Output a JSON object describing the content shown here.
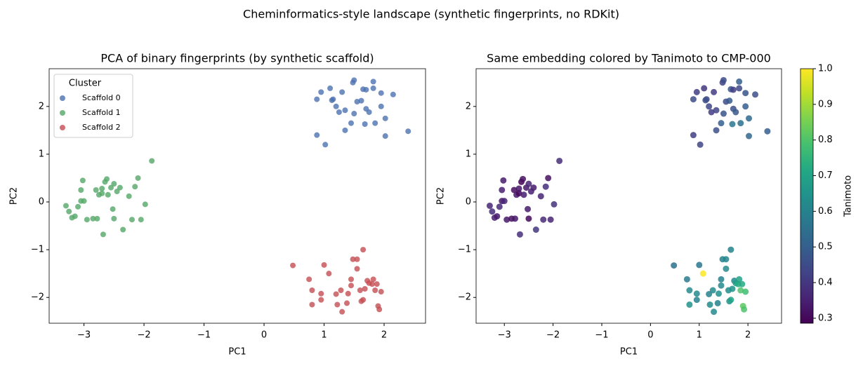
{
  "suptitle": "Cheminformatics-style landscape (synthetic fingerprints, no RDKit)",
  "chart_data": [
    {
      "type": "scatter",
      "title": "PCA of binary fingerprints (by synthetic scaffold)",
      "xlabel": "PC1",
      "ylabel": "PC2",
      "xlim": [
        -3.58,
        2.69
      ],
      "ylim": [
        -2.54,
        2.79
      ],
      "xticks": [
        {
          "value": -3,
          "label": "−3"
        },
        {
          "value": -2,
          "label": "−2"
        },
        {
          "value": -1,
          "label": "−1"
        },
        0,
        1,
        2
      ],
      "yticks": [
        {
          "value": -2,
          "label": "−2"
        },
        {
          "value": -1,
          "label": "−1"
        },
        0,
        1,
        2
      ],
      "alpha": 0.8,
      "legend": {
        "title": "Cluster",
        "loc": "upper left"
      },
      "series": [
        {
          "name": "Scaffold 0",
          "color": "#4c72b0",
          "x": [
            0.88,
            0.95,
            1.1,
            1.15,
            1.13,
            1.3,
            1.48,
            1.5,
            1.65,
            1.7,
            1.82,
            1.82,
            1.95,
            2.15,
            1.25,
            1.35,
            1.5,
            1.55,
            1.62,
            1.7,
            1.95,
            2.02,
            1.85,
            1.68,
            1.45,
            1.35,
            0.88,
            1.02,
            2.02,
            2.4,
            1.2,
            1.75
          ],
          "y": [
            2.15,
            2.3,
            2.38,
            2.15,
            2.13,
            2.3,
            2.5,
            2.55,
            2.36,
            2.35,
            2.52,
            2.38,
            2.28,
            2.25,
            1.88,
            1.92,
            1.85,
            2.1,
            2.12,
            1.95,
            2.0,
            1.75,
            1.65,
            1.63,
            1.65,
            1.5,
            1.4,
            1.2,
            1.38,
            1.48,
            2.0,
            1.88
          ]
        },
        {
          "name": "Scaffold 1",
          "color": "#55a868",
          "x": [
            -3.3,
            -3.25,
            -3.2,
            -3.15,
            -3.1,
            -3.05,
            -3.0,
            -3.05,
            -3.02,
            -2.95,
            -2.85,
            -2.8,
            -2.75,
            -2.7,
            -2.7,
            -2.65,
            -2.62,
            -2.6,
            -2.55,
            -2.5,
            -2.52,
            -2.5,
            -2.68,
            -2.45,
            -2.4,
            -2.35,
            -2.25,
            -2.15,
            -2.1,
            -2.2,
            -2.05,
            -1.98,
            -1.87,
            -2.78
          ],
          "y": [
            -0.08,
            -0.2,
            -0.33,
            -0.3,
            -0.1,
            0.02,
            0.02,
            0.25,
            0.45,
            -0.37,
            -0.35,
            0.25,
            0.15,
            0.28,
            0.18,
            0.42,
            0.48,
            0.15,
            0.3,
            0.38,
            -0.15,
            -0.35,
            -0.68,
            0.22,
            0.3,
            -0.58,
            0.12,
            0.32,
            0.5,
            -0.37,
            -0.37,
            -0.05,
            0.86,
            -0.35
          ]
        },
        {
          "name": "Scaffold 2",
          "color": "#c44e52",
          "x": [
            0.48,
            0.75,
            0.8,
            0.8,
            0.95,
            0.95,
            1.0,
            1.08,
            1.2,
            1.22,
            1.28,
            1.3,
            1.38,
            1.4,
            1.45,
            1.45,
            1.48,
            1.55,
            1.55,
            1.6,
            1.62,
            1.65,
            1.65,
            1.68,
            1.72,
            1.75,
            1.8,
            1.82,
            1.85,
            1.88,
            1.9,
            1.92,
            1.95
          ],
          "y": [
            -1.33,
            -1.62,
            -1.85,
            -2.15,
            -2.05,
            -1.92,
            -1.32,
            -1.5,
            -1.93,
            -2.15,
            -1.85,
            -2.3,
            -2.12,
            -1.92,
            -1.62,
            -1.75,
            -1.2,
            -1.2,
            -1.4,
            -1.85,
            -2.08,
            -1.0,
            -2.05,
            -1.82,
            -1.65,
            -1.7,
            -1.72,
            -1.62,
            -1.85,
            -1.72,
            -2.18,
            -2.25,
            -1.88
          ]
        }
      ]
    },
    {
      "type": "colorscatter",
      "title": "Same embedding colored by Tanimoto to CMP-000",
      "xlabel": "PC1",
      "ylabel": "PC2",
      "xlim": [
        -3.58,
        2.69
      ],
      "ylim": [
        -2.54,
        2.79
      ],
      "xticks": [
        {
          "value": -3,
          "label": "−3"
        },
        {
          "value": -2,
          "label": "−2"
        },
        {
          "value": -1,
          "label": "−1"
        },
        0,
        1,
        2
      ],
      "yticks": [
        {
          "value": -2,
          "label": "−2"
        },
        {
          "value": -1,
          "label": "−1"
        },
        0,
        1,
        2
      ],
      "alpha": 0.85,
      "x": [
        0.88,
        0.95,
        1.1,
        1.15,
        1.13,
        1.3,
        1.48,
        1.5,
        1.65,
        1.7,
        1.82,
        1.82,
        1.95,
        2.15,
        1.25,
        1.35,
        1.5,
        1.55,
        1.62,
        1.7,
        1.95,
        2.02,
        1.85,
        1.68,
        1.45,
        1.35,
        0.88,
        1.02,
        2.02,
        2.4,
        1.2,
        1.75,
        -3.3,
        -3.25,
        -3.2,
        -3.15,
        -3.1,
        -3.05,
        -3.0,
        -3.05,
        -3.02,
        -2.95,
        -2.85,
        -2.8,
        -2.75,
        -2.7,
        -2.7,
        -2.65,
        -2.62,
        -2.6,
        -2.55,
        -2.5,
        -2.52,
        -2.5,
        -2.68,
        -2.45,
        -2.4,
        -2.35,
        -2.25,
        -2.15,
        -2.1,
        -2.2,
        -2.05,
        -1.98,
        -1.87,
        -2.78,
        0.48,
        0.75,
        0.8,
        0.8,
        0.95,
        0.95,
        1.0,
        1.08,
        1.2,
        1.22,
        1.28,
        1.3,
        1.38,
        1.4,
        1.45,
        1.45,
        1.48,
        1.55,
        1.55,
        1.6,
        1.62,
        1.65,
        1.65,
        1.68,
        1.72,
        1.75,
        1.8,
        1.82,
        1.85,
        1.88,
        1.9,
        1.92,
        1.95
      ],
      "y": [
        2.15,
        2.3,
        2.38,
        2.15,
        2.13,
        2.3,
        2.5,
        2.55,
        2.36,
        2.35,
        2.52,
        2.38,
        2.28,
        2.25,
        1.88,
        1.92,
        1.85,
        2.1,
        2.12,
        1.95,
        2.0,
        1.75,
        1.65,
        1.63,
        1.65,
        1.5,
        1.4,
        1.2,
        1.38,
        1.48,
        2.0,
        1.88,
        -0.08,
        -0.2,
        -0.33,
        -0.3,
        -0.1,
        0.02,
        0.02,
        0.25,
        0.45,
        -0.37,
        -0.35,
        0.25,
        0.15,
        0.28,
        0.18,
        0.42,
        0.48,
        0.15,
        0.3,
        0.38,
        -0.15,
        -0.35,
        -0.68,
        0.22,
        0.3,
        -0.58,
        0.12,
        0.32,
        0.5,
        -0.37,
        -0.37,
        -0.05,
        0.86,
        -0.35,
        -1.33,
        -1.62,
        -1.85,
        -2.15,
        -2.05,
        -1.92,
        -1.32,
        -1.5,
        -1.93,
        -2.15,
        -1.85,
        -2.3,
        -2.12,
        -1.92,
        -1.62,
        -1.75,
        -1.2,
        -1.2,
        -1.4,
        -1.85,
        -2.08,
        -1.0,
        -2.05,
        -1.82,
        -1.65,
        -1.7,
        -1.72,
        -1.62,
        -1.85,
        -1.72,
        -2.18,
        -2.25,
        -1.88
      ],
      "values": [
        0.45,
        0.42,
        0.4,
        0.44,
        0.46,
        0.41,
        0.43,
        0.45,
        0.48,
        0.42,
        0.5,
        0.44,
        0.47,
        0.46,
        0.41,
        0.43,
        0.47,
        0.45,
        0.49,
        0.46,
        0.5,
        0.53,
        0.55,
        0.57,
        0.5,
        0.46,
        0.42,
        0.43,
        0.52,
        0.5,
        0.44,
        0.48,
        0.36,
        0.38,
        0.35,
        0.34,
        0.37,
        0.33,
        0.36,
        0.35,
        0.34,
        0.33,
        0.32,
        0.31,
        0.34,
        0.33,
        0.3,
        0.29,
        0.32,
        0.35,
        0.33,
        0.36,
        0.34,
        0.3,
        0.38,
        0.35,
        0.34,
        0.4,
        0.36,
        0.38,
        0.32,
        0.37,
        0.36,
        0.39,
        0.38,
        0.33,
        0.55,
        0.58,
        0.62,
        0.65,
        0.6,
        0.62,
        0.57,
        1.0,
        0.6,
        0.63,
        0.62,
        0.62,
        0.6,
        0.64,
        0.6,
        0.62,
        0.6,
        0.61,
        0.62,
        0.63,
        0.65,
        0.6,
        0.7,
        0.65,
        0.62,
        0.68,
        0.72,
        0.7,
        0.8,
        0.72,
        0.82,
        0.8,
        0.78
      ],
      "colorbar": {
        "label": "Tanimoto",
        "colormap": "viridis",
        "clim": [
          0.286,
          1.0
        ],
        "ticks": [
          0.3,
          0.4,
          0.5,
          0.6,
          0.7,
          0.8,
          0.9,
          {
            "value": 1,
            "label": "1.0"
          }
        ]
      }
    }
  ]
}
